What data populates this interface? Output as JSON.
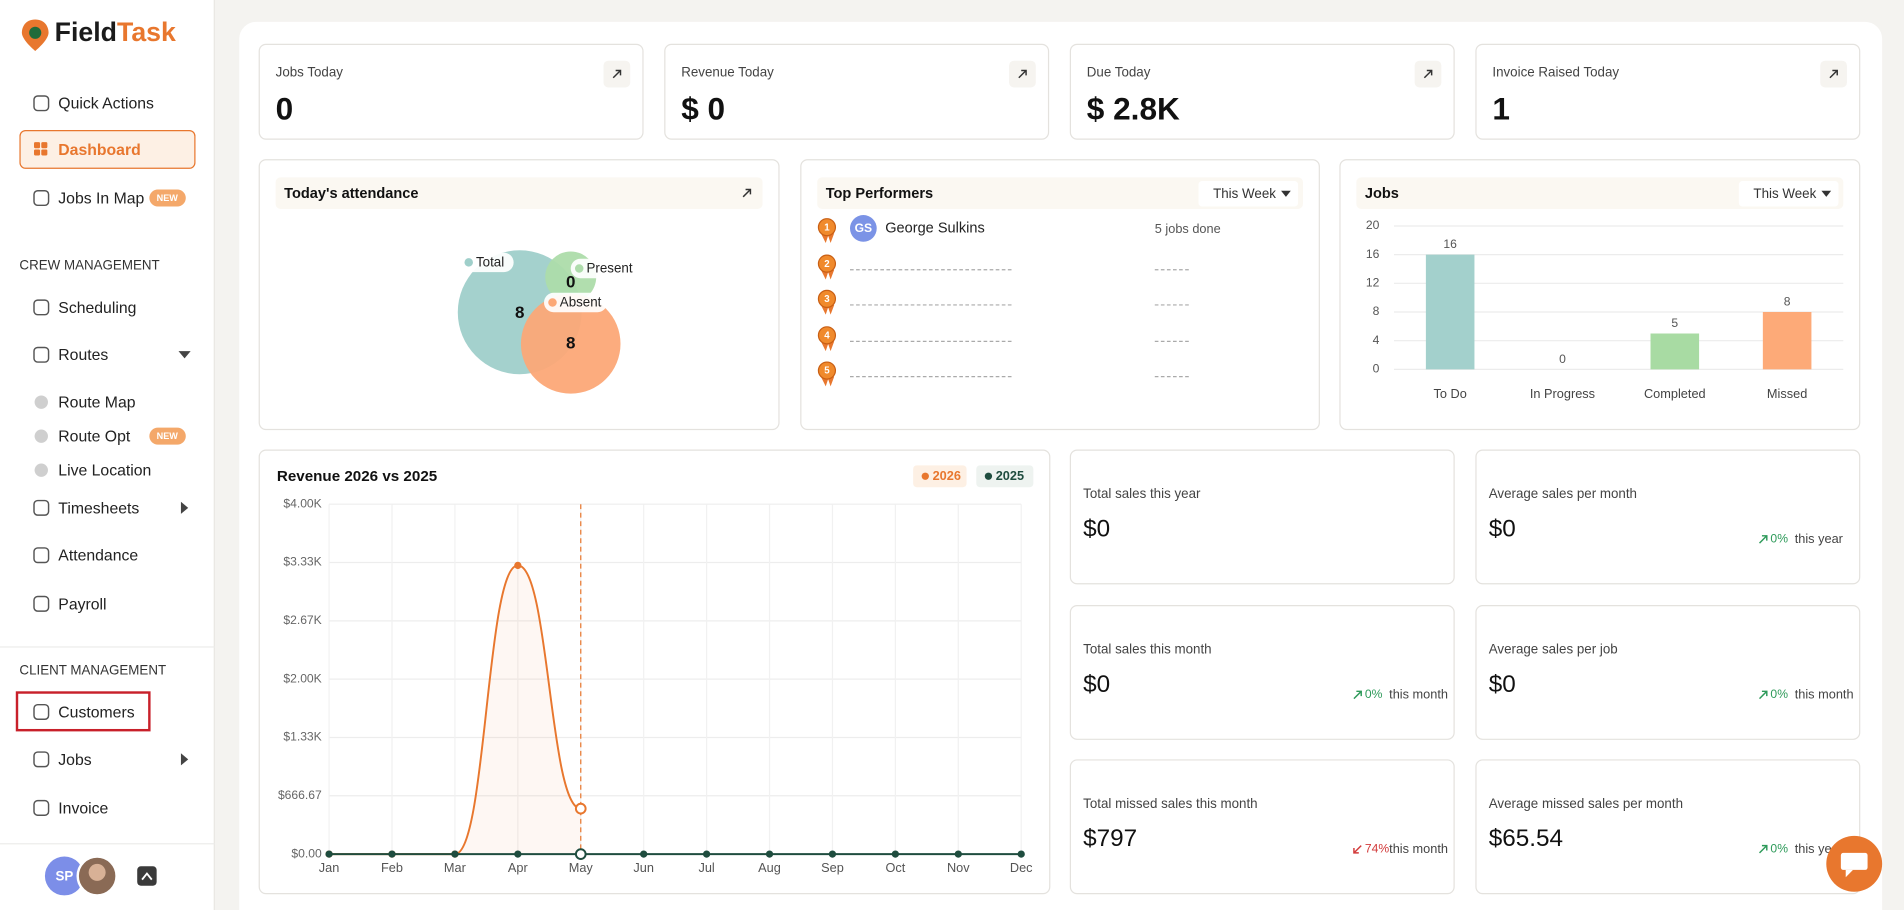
{
  "sidebar": {
    "brand": [
      "Field",
      "Task"
    ],
    "sections": [
      {
        "items": [
          {
            "label": "Quick Actions"
          },
          {
            "label": "Dashboard",
            "active": true
          },
          {
            "label": "Jobs In Map",
            "badge": "NEW"
          }
        ]
      },
      {
        "heading": "CREW MANAGEMENT",
        "items": [
          {
            "label": "Scheduling"
          },
          {
            "label": "Routes",
            "caret": "down"
          },
          {
            "label": "Route Map",
            "sub": true
          },
          {
            "label": "Route Opt",
            "sub": true,
            "badge": "NEW"
          },
          {
            "label": "Live Location",
            "sub": true
          },
          {
            "label": "Timesheets",
            "caret": "right"
          },
          {
            "label": "Attendance"
          },
          {
            "label": "Payroll"
          }
        ]
      },
      {
        "heading": "CLIENT MANAGEMENT",
        "items": [
          {
            "label": "Customers",
            "highlighted": true
          },
          {
            "label": "Jobs",
            "caret": "right"
          },
          {
            "label": "Invoice"
          }
        ]
      }
    ],
    "user": {
      "initials": "SP"
    }
  },
  "kpis": [
    {
      "label": "Jobs Today",
      "value": 0
    },
    {
      "label": "Revenue Today",
      "value": "$ 0"
    },
    {
      "label": "Due Today",
      "value": "$ 2.8K"
    },
    {
      "label": "Invoice Raised Today",
      "value": 1
    }
  ],
  "attendance": {
    "title": "Today's attendance",
    "items": [
      {
        "name": "Total",
        "value": 8,
        "color": "#9fcfca"
      },
      {
        "name": "Present",
        "value": 0,
        "color": "#addcaa"
      },
      {
        "name": "Absent",
        "value": 8,
        "color": "#fca877"
      }
    ]
  },
  "top_performers": {
    "title": "Top Performers",
    "period": "This Week",
    "rows": [
      {
        "rank": 1,
        "initials": "GS",
        "name": "George Sulkins",
        "jobs": "5 jobs done"
      },
      {
        "rank": 2
      },
      {
        "rank": 3
      },
      {
        "rank": 4
      },
      {
        "rank": 5
      }
    ]
  },
  "jobs_chart": {
    "type": "bar",
    "title": "Jobs",
    "period": "This Week",
    "categories": [
      "To Do",
      "In Progress",
      "Completed",
      "Missed"
    ],
    "values": [
      16,
      0,
      5,
      8
    ],
    "colors": [
      "#a3d0cc",
      "#a8dba3",
      "#a8dba3",
      "#fdaa78"
    ],
    "ylim": [
      0,
      20
    ],
    "yticks": [
      0,
      4,
      8,
      12,
      16,
      20
    ],
    "grid": true
  },
  "revenue_chart": {
    "type": "line",
    "title": "Revenue 2026 vs 2025",
    "categories": [
      "Jan",
      "Feb",
      "Mar",
      "Apr",
      "May",
      "Jun",
      "Jul",
      "Aug",
      "Sep",
      "Oct",
      "Nov",
      "Dec"
    ],
    "series": [
      {
        "name": "2026",
        "color": "#e8772e",
        "values": [
          0,
          0,
          0,
          3300,
          520,
          null,
          null,
          null,
          null,
          null,
          null,
          null
        ]
      },
      {
        "name": "2025",
        "color": "#1f4d3f",
        "values": [
          0,
          0,
          0,
          0,
          0,
          0,
          0,
          0,
          0,
          0,
          0,
          0
        ]
      }
    ],
    "ylim": [
      0,
      4000
    ],
    "yticks": [
      {
        "value": 0,
        "label": "$0.00"
      },
      {
        "value": 666.67,
        "label": "$666.67"
      },
      {
        "value": 1333.33,
        "label": "$1.33K"
      },
      {
        "value": 2000,
        "label": "$2.00K"
      },
      {
        "value": 2666.67,
        "label": "$2.67K"
      },
      {
        "value": 3333.33,
        "label": "$3.33K"
      },
      {
        "value": 4000,
        "label": "$4.00K"
      }
    ],
    "grid": true
  },
  "stats": [
    {
      "label": "Total sales this year",
      "value": "$0"
    },
    {
      "label": "Average sales per month",
      "value": "$0",
      "change": "0%",
      "trend": "up",
      "period": "this year"
    },
    {
      "label": "Total sales this month",
      "value": "$0",
      "change": "0%",
      "trend": "up",
      "period": "this month"
    },
    {
      "label": "Average sales per job",
      "value": "$0",
      "change": "0%",
      "trend": "up",
      "period": "this month"
    },
    {
      "label": "Total missed sales this month",
      "value": "$797",
      "change": "74%",
      "trend": "down",
      "period": "this month"
    },
    {
      "label": "Average missed sales per month",
      "value": "$65.54",
      "change": "0%",
      "trend": "up",
      "period": "this year"
    }
  ]
}
